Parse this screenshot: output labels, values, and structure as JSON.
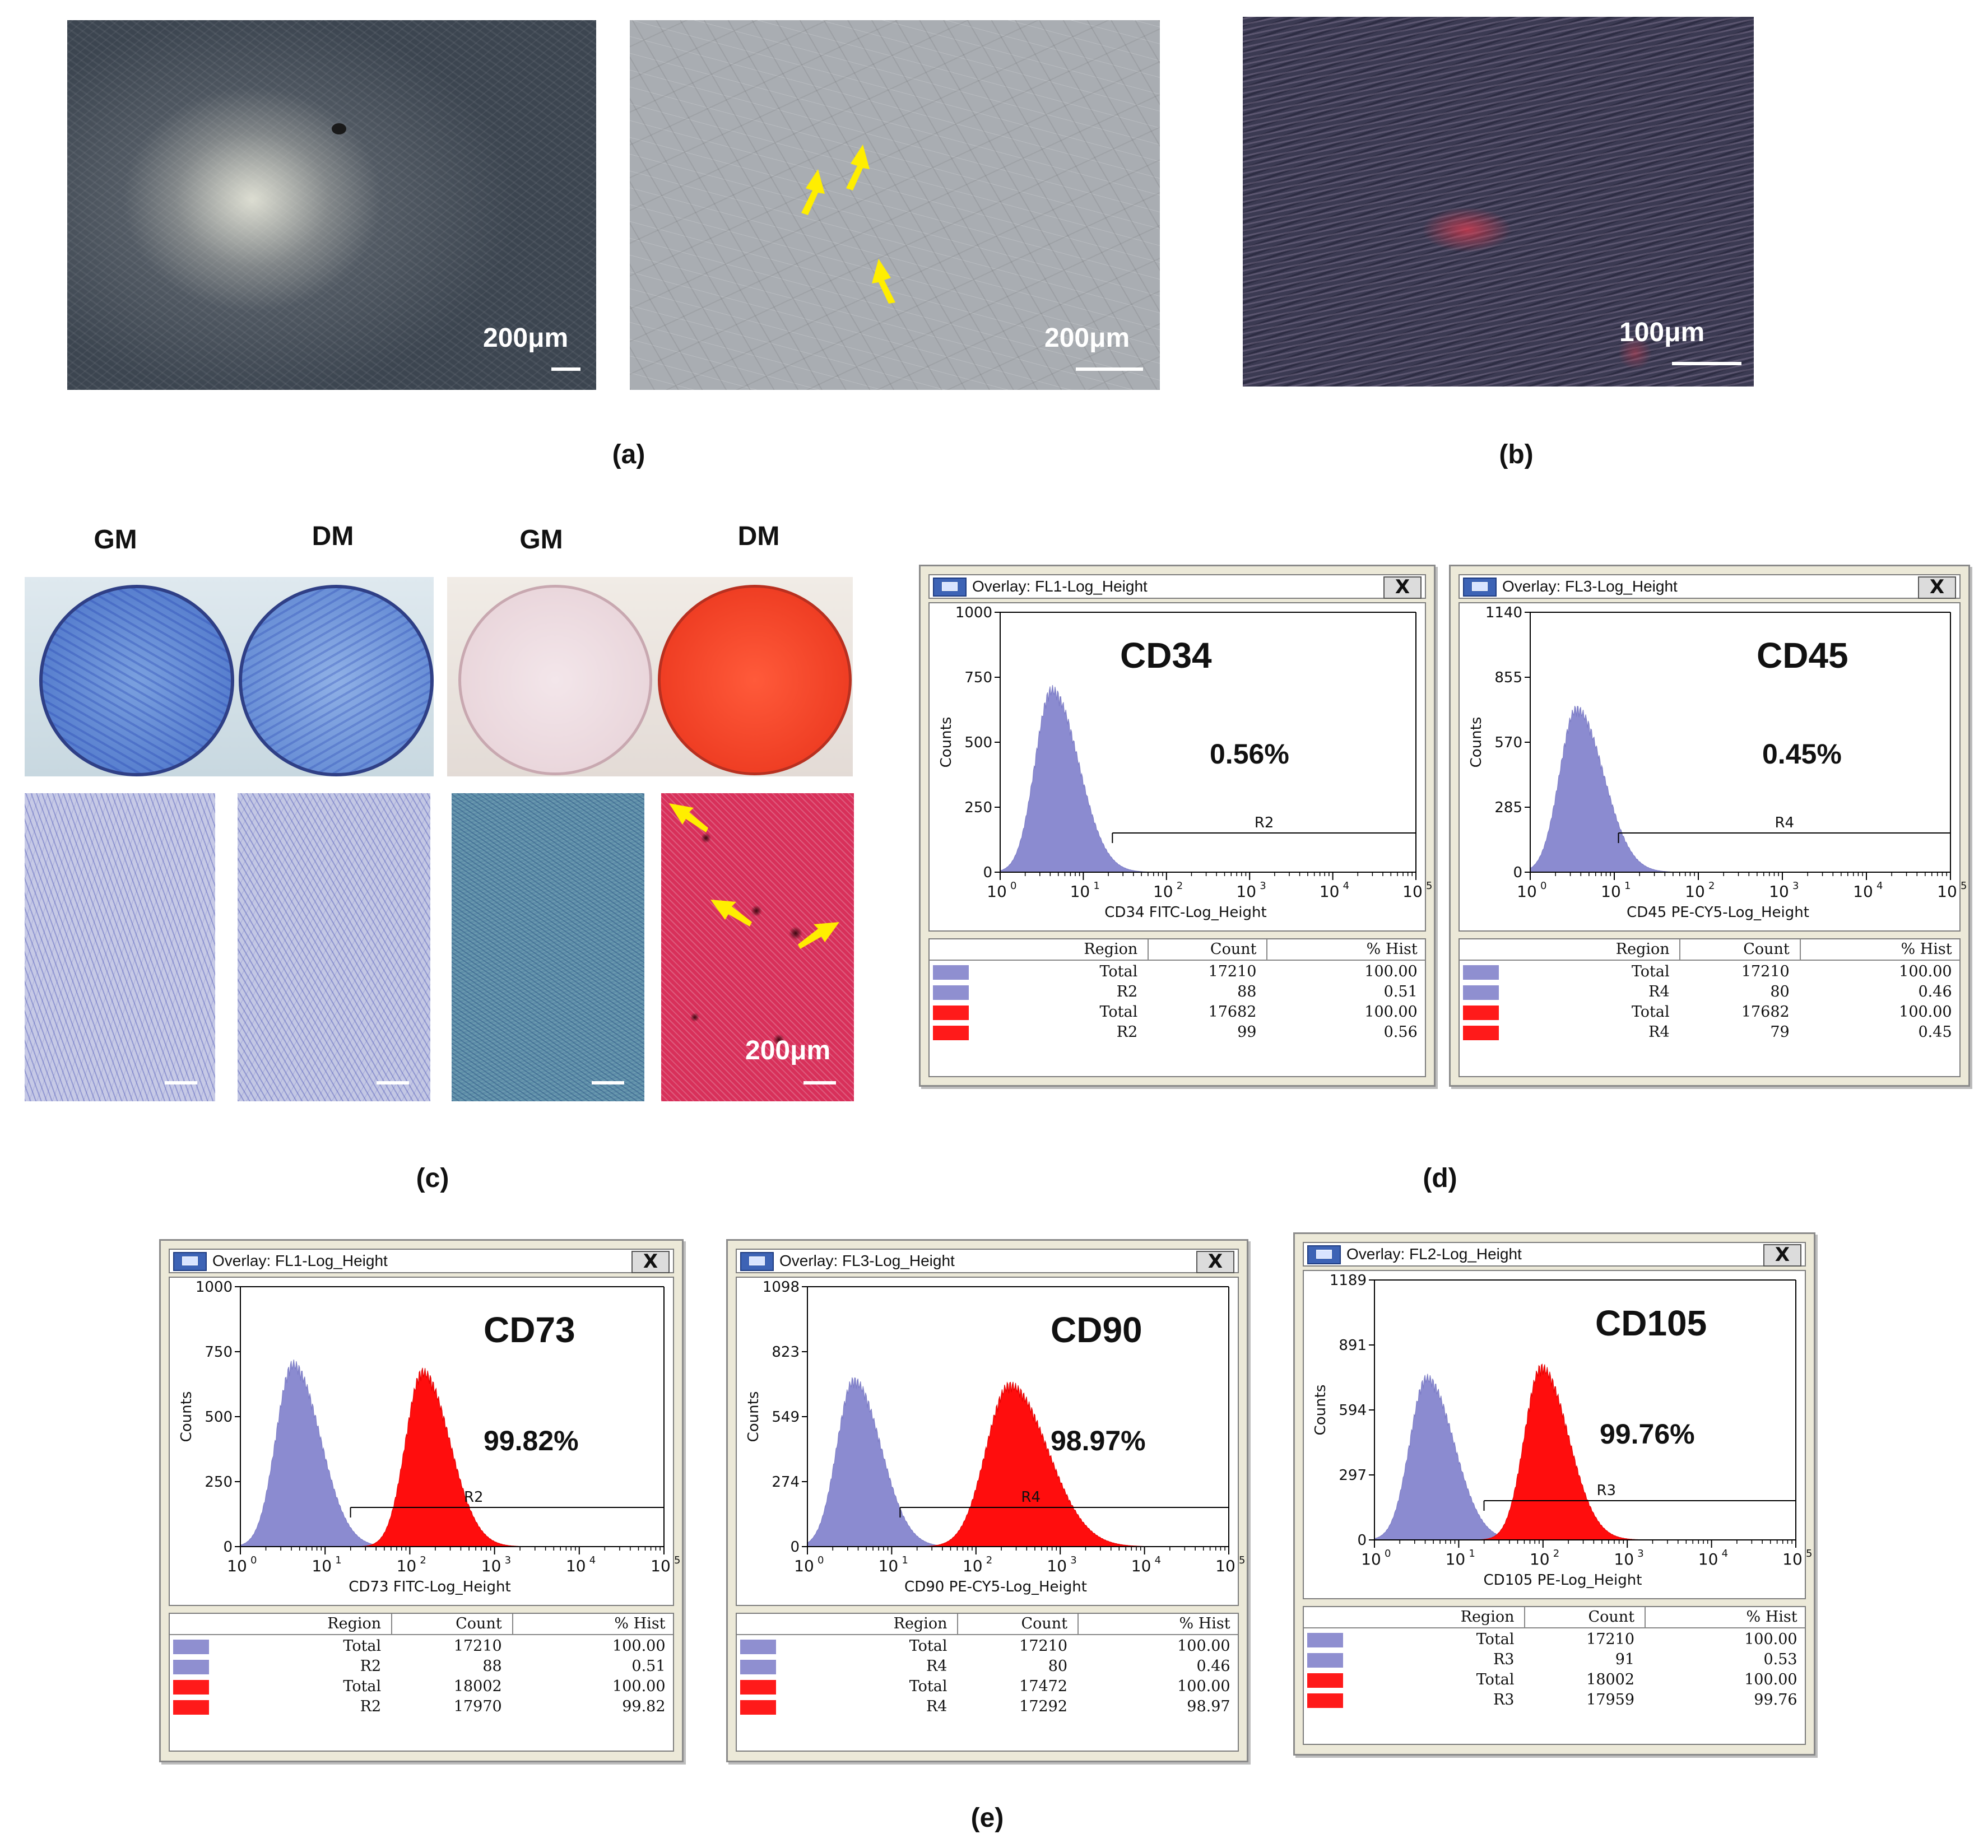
{
  "panels": {
    "a": {
      "label": "(a)",
      "img1_scale": "200μm",
      "img2_scale": "200μm"
    },
    "b": {
      "label": "(b)",
      "scale": "100μm"
    },
    "c": {
      "label": "(c)",
      "col1": "GM",
      "col2": "DM",
      "col3": "GM",
      "col4": "DM",
      "scale": "200μm"
    },
    "d": {
      "label": "(d)"
    },
    "e": {
      "label": "(e)"
    }
  },
  "flow": [
    {
      "title": "Overlay: FL1-Log_Height",
      "close": "X",
      "marker": "CD34",
      "percent": "0.56%",
      "region": "R2",
      "xlabel": "CD34 FITC-Log_Height",
      "ylabel": "Counts",
      "yticks": [
        "0",
        "250",
        "500",
        "750",
        "1000"
      ],
      "ymax": 1000,
      "xticks": [
        {
          "b": "10",
          "e": "0"
        },
        {
          "b": "10",
          "e": "1"
        },
        {
          "b": "10",
          "e": "2"
        },
        {
          "b": "10",
          "e": "3"
        },
        {
          "b": "10",
          "e": "4"
        },
        {
          "b": "10",
          "e": "5"
        }
      ],
      "gate_start_log": 1.35,
      "hist": {
        "blue_peak_log": 0.62,
        "blue_height": 720,
        "red_peak_log": null,
        "red_height": 0
      },
      "table": {
        "headers": [
          "Region",
          "Count",
          "% Hist"
        ],
        "rows": [
          {
            "color": "#8f8fd0",
            "region": "Total",
            "count": "17210",
            "hist": "100.00"
          },
          {
            "color": "#8f8fd0",
            "region": "R2",
            "count": "88",
            "hist": "0.51"
          },
          {
            "color": "#ff1a1a",
            "region": "Total",
            "count": "17682",
            "hist": "100.00"
          },
          {
            "color": "#ff1a1a",
            "region": "R2",
            "count": "99",
            "hist": "0.56"
          }
        ]
      }
    },
    {
      "title": "Overlay: FL3-Log_Height",
      "close": "X",
      "marker": "CD45",
      "percent": "0.45%",
      "region": "R4",
      "xlabel": "CD45 PE-CY5-Log_Height",
      "ylabel": "Counts",
      "yticks": [
        "0",
        "285",
        "570",
        "855",
        "1140"
      ],
      "ymax": 1140,
      "xticks": [
        {
          "b": "10",
          "e": "0"
        },
        {
          "b": "10",
          "e": "1"
        },
        {
          "b": "10",
          "e": "2"
        },
        {
          "b": "10",
          "e": "3"
        },
        {
          "b": "10",
          "e": "4"
        },
        {
          "b": "10",
          "e": "5"
        }
      ],
      "gate_start_log": 1.05,
      "hist": {
        "blue_peak_log": 0.55,
        "blue_height": 735,
        "red_peak_log": null,
        "red_height": 0
      },
      "table": {
        "headers": [
          "Region",
          "Count",
          "% Hist"
        ],
        "rows": [
          {
            "color": "#8f8fd0",
            "region": "Total",
            "count": "17210",
            "hist": "100.00"
          },
          {
            "color": "#8f8fd0",
            "region": "R4",
            "count": "80",
            "hist": "0.46"
          },
          {
            "color": "#ff1a1a",
            "region": "Total",
            "count": "17682",
            "hist": "100.00"
          },
          {
            "color": "#ff1a1a",
            "region": "R4",
            "count": "79",
            "hist": "0.45"
          }
        ]
      }
    },
    {
      "title": "Overlay: FL1-Log_Height",
      "close": "X",
      "marker": "CD73",
      "percent": "99.82%",
      "region": "R2",
      "xlabel": "CD73 FITC-Log_Height",
      "ylabel": "Counts",
      "yticks": [
        "0",
        "250",
        "500",
        "750",
        "1000"
      ],
      "ymax": 1000,
      "xticks": [
        {
          "b": "10",
          "e": "0"
        },
        {
          "b": "10",
          "e": "1"
        },
        {
          "b": "10",
          "e": "2"
        },
        {
          "b": "10",
          "e": "3"
        },
        {
          "b": "10",
          "e": "4"
        },
        {
          "b": "10",
          "e": "5"
        }
      ],
      "gate_start_log": 1.3,
      "hist": {
        "blue_peak_log": 0.62,
        "blue_height": 720,
        "red_peak_log": 2.15,
        "red_height": 690
      },
      "table": {
        "headers": [
          "Region",
          "Count",
          "% Hist"
        ],
        "rows": [
          {
            "color": "#8f8fd0",
            "region": "Total",
            "count": "17210",
            "hist": "100.00"
          },
          {
            "color": "#8f8fd0",
            "region": "R2",
            "count": "88",
            "hist": "0.51"
          },
          {
            "color": "#ff1a1a",
            "region": "Total",
            "count": "18002",
            "hist": "100.00"
          },
          {
            "color": "#ff1a1a",
            "region": "R2",
            "count": "17970",
            "hist": "99.82"
          }
        ]
      }
    },
    {
      "title": "Overlay: FL3-Log_Height",
      "close": "X",
      "marker": "CD90",
      "percent": "98.97%",
      "region": "R4",
      "xlabel": "CD90 PE-CY5-Log_Height",
      "ylabel": "Counts",
      "yticks": [
        "0",
        "274",
        "549",
        "823",
        "1098"
      ],
      "ymax": 1098,
      "xticks": [
        {
          "b": "10",
          "e": "0"
        },
        {
          "b": "10",
          "e": "1"
        },
        {
          "b": "10",
          "e": "2"
        },
        {
          "b": "10",
          "e": "3"
        },
        {
          "b": "10",
          "e": "4"
        },
        {
          "b": "10",
          "e": "5"
        }
      ],
      "gate_start_log": 1.1,
      "hist": {
        "blue_peak_log": 0.55,
        "blue_height": 720,
        "red_peak_log": 2.4,
        "red_height": 700
      },
      "table": {
        "headers": [
          "Region",
          "Count",
          "% Hist"
        ],
        "rows": [
          {
            "color": "#8f8fd0",
            "region": "Total",
            "count": "17210",
            "hist": "100.00"
          },
          {
            "color": "#8f8fd0",
            "region": "R4",
            "count": "80",
            "hist": "0.46"
          },
          {
            "color": "#ff1a1a",
            "region": "Total",
            "count": "17472",
            "hist": "100.00"
          },
          {
            "color": "#ff1a1a",
            "region": "R4",
            "count": "17292",
            "hist": "98.97"
          }
        ]
      }
    },
    {
      "title": "Overlay: FL2-Log_Height",
      "close": "X",
      "marker": "CD105",
      "percent": "99.76%",
      "region": "R3",
      "xlabel": "CD105 PE-Log_Height",
      "ylabel": "Counts",
      "yticks": [
        "0",
        "297",
        "594",
        "891",
        "1189"
      ],
      "ymax": 1189,
      "xticks": [
        {
          "b": "10",
          "e": "0"
        },
        {
          "b": "10",
          "e": "1"
        },
        {
          "b": "10",
          "e": "2"
        },
        {
          "b": "10",
          "e": "3"
        },
        {
          "b": "10",
          "e": "4"
        },
        {
          "b": "10",
          "e": "5"
        }
      ],
      "gate_start_log": 1.3,
      "hist": {
        "blue_peak_log": 0.62,
        "blue_height": 760,
        "red_peak_log": 1.98,
        "red_height": 810
      },
      "table": {
        "headers": [
          "Region",
          "Count",
          "% Hist"
        ],
        "rows": [
          {
            "color": "#8f8fd0",
            "region": "Total",
            "count": "17210",
            "hist": "100.00"
          },
          {
            "color": "#8f8fd0",
            "region": "R3",
            "count": "91",
            "hist": "0.53"
          },
          {
            "color": "#ff1a1a",
            "region": "Total",
            "count": "18002",
            "hist": "100.00"
          },
          {
            "color": "#ff1a1a",
            "region": "R3",
            "count": "17959",
            "hist": "99.76"
          }
        ]
      }
    }
  ]
}
